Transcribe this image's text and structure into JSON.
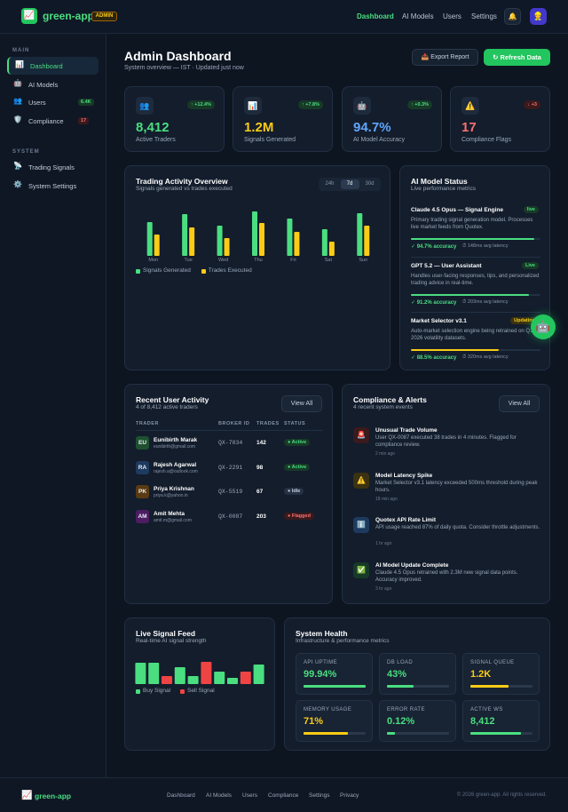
{
  "header": {
    "logo_icon": "📈",
    "logo": "green-app",
    "badge": "ADMIN",
    "nav": [
      "Dashboard",
      "AI Models",
      "Users",
      "Settings"
    ],
    "bell": "🔔",
    "avatar": "👷"
  },
  "sidebar": {
    "sections": [
      {
        "title": "MAIN",
        "items": [
          {
            "icon": "📊",
            "label": "Dashboard"
          },
          {
            "icon": "🤖",
            "label": "AI Models"
          },
          {
            "icon": "👥",
            "label": "Users",
            "badge": "6.4K"
          },
          {
            "icon": "🛡️",
            "label": "Compliance",
            "badge": "17"
          }
        ]
      },
      {
        "title": "SYSTEM",
        "items": [
          {
            "icon": "📡",
            "label": "Trading Signals"
          },
          {
            "icon": "⚙️",
            "label": "System Settings"
          }
        ]
      }
    ]
  },
  "page": {
    "title": "Admin Dashboard",
    "subtitle": "System overview — IST · Updated just now",
    "actions": [
      "📤 Export Report",
      "↻ Refresh Data"
    ]
  },
  "stats": [
    {
      "icon": "👥",
      "change": "↑ +12.4%",
      "value": "8,412",
      "label": "Active Traders",
      "color": "#4ade80"
    },
    {
      "icon": "📊",
      "change": "↑ +7.8%",
      "value": "1.2M",
      "label": "Signals Generated",
      "color": "#facc15"
    },
    {
      "icon": "🤖",
      "change": "↑ +0.3%",
      "value": "94.7%",
      "label": "AI Model Accuracy",
      "color": "#60a5fa"
    },
    {
      "icon": "⚠️",
      "change": "↓ +3",
      "value": "17",
      "label": "Compliance Flags",
      "color": "#f87171"
    }
  ],
  "chart_data": [
    {
      "type": "bar",
      "title": "Trading Activity Overview",
      "subtitle": "Signals generated vs trades executed",
      "ranges": [
        "24h",
        "7d",
        "30d"
      ],
      "categories": [
        "Mon",
        "Tue",
        "Wed",
        "Thu",
        "Fri",
        "Sat",
        "Sun"
      ],
      "series": [
        {
          "name": "Signals Generated",
          "color": "#4ade80",
          "values": [
            38,
            47,
            34,
            50,
            42,
            30,
            48
          ]
        },
        {
          "name": "Trades Executed",
          "color": "#facc15",
          "values": [
            24,
            32,
            20,
            37,
            27,
            16,
            34
          ]
        }
      ]
    },
    {
      "type": "bar",
      "title": "Live Signal Feed",
      "subtitle": "Real-time AI signal strength",
      "series": [
        {
          "name": "Buy Signal",
          "color": "#4ade80",
          "values": [
            24,
            24,
            null,
            19,
            9,
            null,
            14,
            7,
            null,
            22
          ]
        },
        {
          "name": "Sell Signal",
          "color": "#ef4444",
          "values": [
            null,
            null,
            9,
            null,
            null,
            25,
            null,
            null,
            14,
            null
          ]
        }
      ]
    }
  ],
  "models": {
    "title": "AI Model Status",
    "subtitle": "Live performance metrics",
    "fab": "🤖",
    "items": [
      {
        "name": "Claude 4.5 Opus — Signal Engine",
        "status": "live",
        "description": "Primary trading signal generation model. Processes live market feeds from Quotex.",
        "progress": 95,
        "color": "#4ade80",
        "accuracy": "✓ 94.7% accuracy",
        "latency": "⏱ 148ms avg latency"
      },
      {
        "name": "GPT 5.2 — User Assistant",
        "status": "Live",
        "description": "Handles user-facing responses, tips, and personalized trading advice in real-time.",
        "progress": 91,
        "color": "#4ade80",
        "accuracy": "✓ 91.2% accuracy",
        "latency": "⏱ 203ms avg latency"
      },
      {
        "name": "Market Selector v3.1",
        "status": "Updating",
        "description": "Auto-market selection engine being retrained on Q1 2026 volatility datasets.",
        "progress": 68,
        "color": "#facc15",
        "accuracy": "✓ 88.5% accuracy",
        "latency": "⏱ 320ms avg latency"
      }
    ]
  },
  "activity": {
    "title": "Recent User Activity",
    "subtitle": "4 of 8,412 active traders",
    "action": "View All",
    "columns": [
      "TRADER",
      "BROKER ID",
      "TRADES",
      "STATUS"
    ],
    "rows": [
      {
        "initials": "EU",
        "name": "Eunibirth Marak",
        "email": "eunibirth@gmail.com",
        "broker_id": "QX-7834",
        "trades": "142",
        "status": "● Active"
      },
      {
        "initials": "RA",
        "name": "Rajesh Agarwal",
        "email": "rajesh.a@outlook.com",
        "broker_id": "QX-2291",
        "trades": "98",
        "status": "● Active"
      },
      {
        "initials": "PK",
        "name": "Priya Krishnan",
        "email": "priya.k@yahoo.in",
        "broker_id": "QX-5519",
        "trades": "67",
        "status": "● Idle"
      },
      {
        "initials": "AM",
        "name": "Amit Mehta",
        "email": "amit.m@gmail.com",
        "broker_id": "QX-0087",
        "trades": "203",
        "status": "● Flagged"
      }
    ]
  },
  "alerts": {
    "title": "Compliance & Alerts",
    "subtitle": "4 recent system events",
    "action": "View All",
    "items": [
      {
        "icon": "🚨",
        "title": "Unusual Trade Volume",
        "text": "User QX-0087 executed 38 trades in 4 minutes. Flagged for compliance review.",
        "time": "2 min ago"
      },
      {
        "icon": "⚠️",
        "title": "Model Latency Spike",
        "text": "Market Selector v3.1 latency exceeded 500ms threshold during peak hours.",
        "time": "18 min ago"
      },
      {
        "icon": "ℹ️",
        "title": "Quotex API Rate Limit",
        "text": "API usage reached 87% of daily quota. Consider throttle adjustments.",
        "time": "1 hr ago"
      },
      {
        "icon": "✅",
        "title": "AI Model Update Complete",
        "text": "Claude 4.5 Opus retrained with 2.3M new signal data points. Accuracy improved.",
        "time": "3 hr ago"
      }
    ]
  },
  "health": {
    "title": "System Health",
    "subtitle": "Infrastructure & performance metrics",
    "metrics": [
      {
        "label": "API UPTIME",
        "value": "99.94%",
        "progress": 99.94,
        "color": "#4ade80"
      },
      {
        "label": "DB LOAD",
        "value": "43%",
        "progress": 43,
        "color": "#4ade80"
      },
      {
        "label": "SIGNAL QUEUE",
        "value": "1.2K",
        "progress": 61,
        "color": "#facc15"
      },
      {
        "label": "MEMORY USAGE",
        "value": "71%",
        "progress": 71,
        "color": "#facc15"
      },
      {
        "label": "ERROR RATE",
        "value": "0.12%",
        "progress": 13,
        "color": "#4ade80"
      },
      {
        "label": "ACTIVE WS",
        "value": "8,412",
        "progress": 82,
        "color": "#4ade80"
      }
    ]
  },
  "footer": {
    "logo_icon": "📈",
    "logo": "green-app",
    "links": [
      "Dashboard",
      "AI Models",
      "Users",
      "Compliance",
      "Settings",
      "Privacy"
    ],
    "copyright": "© 2026 green-app. All rights reserved."
  }
}
